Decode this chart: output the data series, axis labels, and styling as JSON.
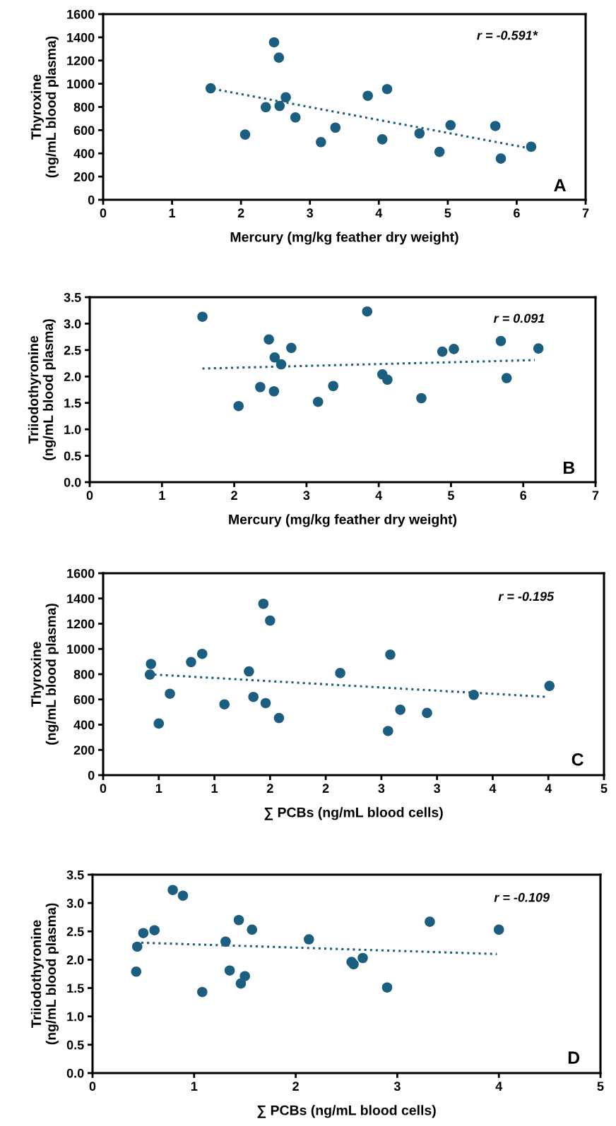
{
  "chart_data": [
    {
      "type": "scatter",
      "xlabel": "Mercury (mg/kg feather dry weight)",
      "ylabel": "Thyroxine\n(ng/mL blood plasma)",
      "xlim": [
        0,
        7
      ],
      "xticks": [
        0,
        1,
        2,
        3,
        4,
        5,
        6,
        7
      ],
      "ylim": [
        0,
        1600
      ],
      "yticks": [
        0,
        200,
        400,
        600,
        800,
        1000,
        1200,
        1400,
        1600
      ],
      "grid": false,
      "legend": false,
      "annotations": [
        "r = -0.591*",
        "A"
      ],
      "series": [
        {
          "color": "#1b5e80",
          "marker": "circle",
          "x": [
            1.56,
            2.06,
            2.36,
            2.48,
            2.55,
            2.56,
            2.65,
            2.79,
            3.16,
            3.37,
            3.84,
            4.12,
            4.05,
            4.59,
            4.88,
            5.04,
            5.69,
            5.77,
            6.21
          ],
          "values": [
            961,
            562,
            798,
            1357,
            1225,
            809,
            883,
            710,
            497,
            622,
            896,
            954,
            521,
            572,
            413,
            643,
            636,
            355,
            457
          ]
        },
        {
          "type": "line",
          "color": "#1b5e80",
          "line_style": "dotted",
          "x": [
            1.6,
            6.16
          ],
          "values": [
            955,
            447
          ]
        }
      ]
    },
    {
      "type": "scatter",
      "xlabel": "Mercury (mg/kg feather dry weight)",
      "ylabel": "Triiodothyronine\n(ng/mL blood plasma)",
      "xlim": [
        0,
        7
      ],
      "xticks": [
        0,
        1,
        2,
        3,
        4,
        5,
        6,
        7
      ],
      "ylim": [
        0,
        3.5
      ],
      "yticks": [
        {
          "value": 0,
          "label": "0.0"
        },
        0.5,
        {
          "value": 1,
          "label": "1.0"
        },
        1.5,
        {
          "value": 2,
          "label": "2.0"
        },
        2.5,
        {
          "value": 3,
          "label": "3.0"
        },
        3.5
      ],
      "grid": false,
      "legend": false,
      "annotations": [
        "r = 0.091",
        "B"
      ],
      "series": [
        {
          "color": "#1b5e80",
          "marker": "circle",
          "x": [
            1.56,
            2.06,
            2.36,
            2.48,
            2.55,
            2.56,
            2.65,
            2.79,
            3.16,
            3.37,
            3.84,
            4.05,
            4.12,
            4.59,
            4.88,
            5.04,
            5.69,
            5.77,
            6.21
          ],
          "values": [
            3.13,
            1.44,
            1.8,
            2.7,
            1.72,
            2.36,
            2.23,
            2.54,
            1.52,
            1.82,
            3.23,
            2.04,
            1.94,
            1.59,
            2.47,
            2.52,
            2.67,
            1.97,
            2.53
          ]
        },
        {
          "type": "line",
          "color": "#1b5e80",
          "line_style": "dotted",
          "x": [
            1.56,
            6.16
          ],
          "values": [
            2.15,
            2.31
          ]
        }
      ]
    },
    {
      "type": "scatter",
      "xlabel": "∑ PCBs (ng/mL blood cells)",
      "ylabel": "Thyroxine\n(ng/mL blood plasma)",
      "xlim": [
        0,
        4.5
      ],
      "xticks": [
        0,
        {
          "value": 0.5,
          "label": "1"
        },
        1,
        {
          "value": 1.5,
          "label": "2"
        },
        2,
        {
          "value": 2.5,
          "label": "3"
        },
        3,
        {
          "value": 3.5,
          "label": "4"
        },
        4,
        {
          "value": 4.5,
          "label": "5"
        }
      ],
      "ylim": [
        0,
        1600
      ],
      "yticks": [
        0,
        200,
        400,
        600,
        800,
        1000,
        1200,
        1400,
        1600
      ],
      "grid": false,
      "legend": false,
      "annotations": [
        "r = -0.195",
        "C"
      ],
      "series": [
        {
          "color": "#1b5e80",
          "marker": "circle",
          "x": [
            0.43,
            0.42,
            0.5,
            0.6,
            0.79,
            0.89,
            1.09,
            1.31,
            1.35,
            1.44,
            1.46,
            1.5,
            1.58,
            2.13,
            2.58,
            2.56,
            2.67,
            2.91,
            3.33,
            4.01
          ],
          "values": [
            881,
            797,
            409,
            645,
            896,
            961,
            561,
            822,
            620,
            1358,
            571,
            1225,
            453,
            809,
            955,
            350,
            518,
            493,
            636,
            707
          ]
        },
        {
          "type": "line",
          "color": "#1b5e80",
          "line_style": "dotted",
          "x": [
            0.46,
            3.99
          ],
          "values": [
            797,
            620
          ]
        }
      ]
    },
    {
      "type": "scatter",
      "xlabel": "∑ PCBs (ng/mL blood cells)",
      "ylabel": "Triiodothyronine\n(ng/mL blood plasma)",
      "xlim": [
        0,
        5
      ],
      "xticks": [
        0,
        1,
        2,
        3,
        4,
        5
      ],
      "ylim": [
        0,
        3.5
      ],
      "yticks": [
        {
          "value": 0,
          "label": "0.0"
        },
        0.5,
        {
          "value": 1,
          "label": "1.0"
        },
        1.5,
        {
          "value": 2,
          "label": "2.0"
        },
        2.5,
        {
          "value": 3,
          "label": "3.0"
        },
        3.5
      ],
      "grid": false,
      "legend": false,
      "annotations": [
        "r = -0.109",
        "D"
      ],
      "series": [
        {
          "color": "#1b5e80",
          "marker": "circle",
          "x": [
            0.43,
            0.44,
            0.5,
            0.61,
            0.79,
            0.89,
            1.08,
            1.31,
            1.35,
            1.44,
            1.46,
            1.5,
            1.57,
            2.13,
            2.55,
            2.57,
            2.66,
            2.9,
            3.32,
            4.0
          ],
          "values": [
            1.79,
            2.23,
            2.47,
            2.52,
            3.23,
            3.13,
            1.43,
            2.32,
            1.81,
            2.7,
            1.58,
            1.71,
            2.53,
            2.36,
            1.96,
            1.92,
            2.03,
            1.51,
            2.67,
            2.53
          ]
        },
        {
          "type": "line",
          "color": "#1b5e80",
          "line_style": "dotted",
          "x": [
            0.48,
            3.98
          ],
          "values": [
            2.3,
            2.1
          ]
        }
      ]
    }
  ]
}
